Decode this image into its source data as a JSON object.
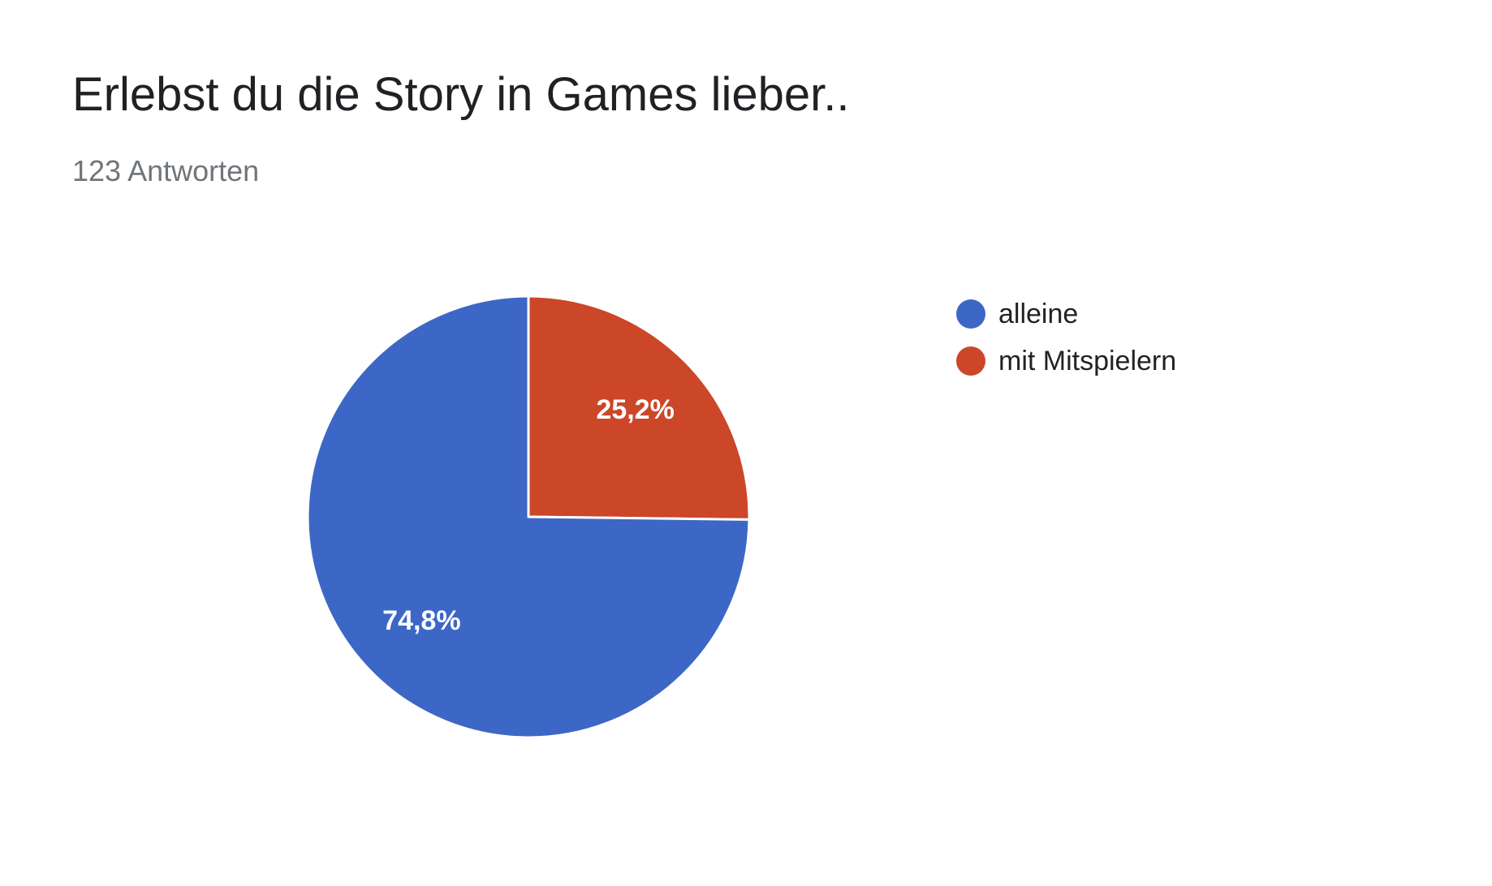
{
  "header": {
    "title": "Erlebst du die Story in Games lieber..",
    "subtitle": "123 Antworten"
  },
  "chart_data": {
    "type": "pie",
    "title": "Erlebst du die Story in Games lieber..",
    "subtitle": "123 Antworten",
    "categories": [
      "alleine",
      "mit Mitspielern"
    ],
    "values": [
      74.8,
      25.2
    ],
    "data_labels": [
      "74,8%",
      "25,2%"
    ],
    "colors": [
      "#3d67c6",
      "#cc4628"
    ],
    "legend_position": "right",
    "start_angle": "top, clockwise (second category first)"
  }
}
